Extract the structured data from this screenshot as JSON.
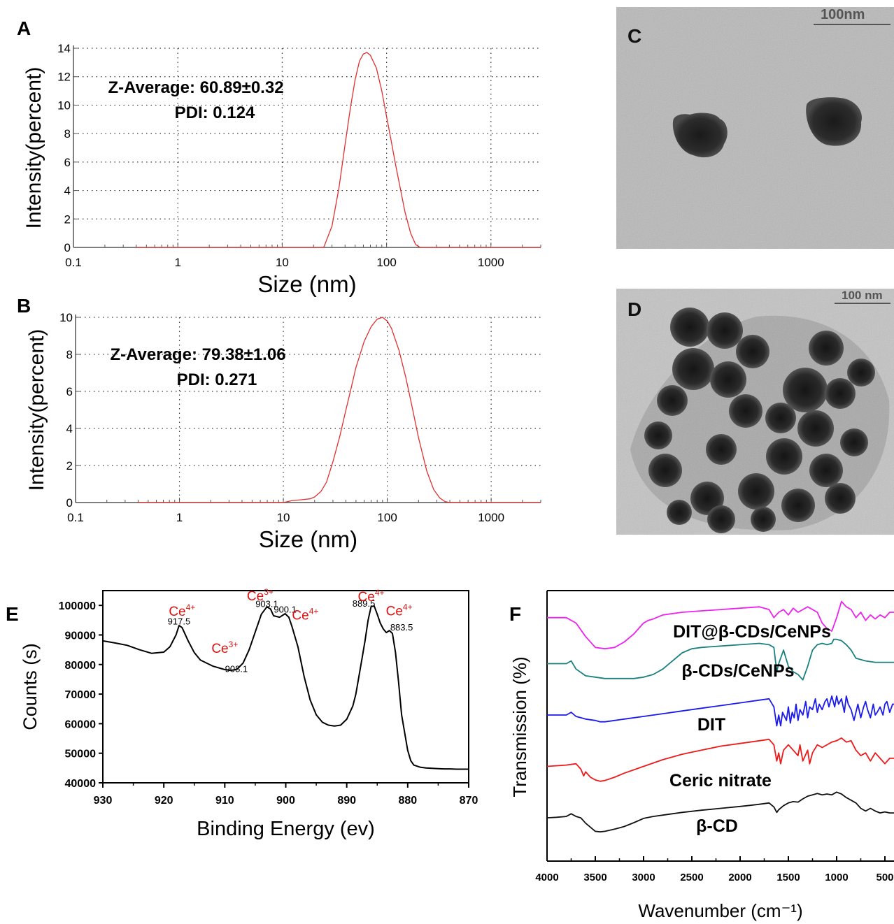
{
  "panels": {
    "A": "A",
    "B": "B",
    "C": "C",
    "D": "D",
    "E": "E",
    "F": "F"
  },
  "tem": {
    "c_scale": "100nm",
    "d_scale": "100 nm"
  },
  "chart_data": [
    {
      "id": "A",
      "type": "line",
      "xscale": "log",
      "xlim": [
        0.1,
        3000
      ],
      "ylim": [
        0,
        14
      ],
      "xticks": [
        "0.1",
        "1",
        "10",
        "100",
        "1000"
      ],
      "yticks": [
        "0",
        "2",
        "4",
        "6",
        "8",
        "10",
        "12",
        "14"
      ],
      "xlabel": "Size (nm)",
      "ylabel": "Intensity(percent)",
      "grid": true,
      "annotations": [
        "Z-Average: 60.89±0.32",
        "PDI: 0.124"
      ],
      "series": [
        {
          "color": "#e03030",
          "x": [
            0.4,
            20,
            25,
            30,
            35,
            40,
            45,
            50,
            55,
            60,
            65,
            70,
            80,
            90,
            100,
            110,
            120,
            130,
            150,
            170,
            190,
            210,
            3000
          ],
          "y": [
            0,
            0,
            0,
            1.5,
            4.2,
            7.2,
            9.8,
            11.8,
            13.1,
            13.6,
            13.7,
            13.5,
            12.6,
            11.0,
            9.2,
            7.6,
            6.1,
            4.8,
            2.5,
            1.0,
            0.2,
            0,
            0
          ]
        }
      ]
    },
    {
      "id": "B",
      "type": "line",
      "xscale": "log",
      "xlim": [
        0.1,
        3000
      ],
      "ylim": [
        0,
        10
      ],
      "xticks": [
        "0.1",
        "1",
        "10",
        "100",
        "1000"
      ],
      "yticks": [
        "0",
        "2",
        "4",
        "6",
        "8",
        "10"
      ],
      "xlabel": "Size (nm)",
      "ylabel": "Intensity(percent)",
      "grid": true,
      "annotations": [
        "Z-Average: 79.38±1.06",
        "PDI: 0.271"
      ],
      "series": [
        {
          "color": "#e03030",
          "x": [
            0.4,
            10,
            12,
            15,
            18,
            20,
            23,
            26,
            30,
            35,
            40,
            45,
            50,
            60,
            70,
            80,
            90,
            100,
            110,
            130,
            150,
            170,
            200,
            240,
            280,
            320,
            360,
            400,
            3000
          ],
          "y": [
            0,
            0,
            0.1,
            0.15,
            0.2,
            0.3,
            0.6,
            1.1,
            2.2,
            3.6,
            5.0,
            6.2,
            7.3,
            8.7,
            9.5,
            9.9,
            10.0,
            9.8,
            9.4,
            8.2,
            6.8,
            5.4,
            3.5,
            1.7,
            0.7,
            0.25,
            0.05,
            0,
            0
          ]
        }
      ]
    },
    {
      "id": "E",
      "type": "line",
      "xlim": [
        930,
        870
      ],
      "ylim": [
        40000,
        105000
      ],
      "xticks": [
        "930",
        "920",
        "910",
        "900",
        "890",
        "880",
        "870"
      ],
      "yticks": [
        "40000",
        "50000",
        "60000",
        "70000",
        "80000",
        "90000",
        "100000"
      ],
      "xlabel": "Binding Energy (ev)",
      "ylabel": "Counts (s)",
      "grid": false,
      "peak_labels": [
        {
          "text": "917.5",
          "x": 917.5,
          "y": 93500
        },
        {
          "text": "908.1",
          "x": 908.1,
          "y": 77500
        },
        {
          "text": "903.1",
          "x": 903.1,
          "y": 99500
        },
        {
          "text": "900.1",
          "x": 900.1,
          "y": 97500
        },
        {
          "text": "889.5",
          "x": 887.2,
          "y": 99600
        },
        {
          "text": "883.5",
          "x": 881.0,
          "y": 91500
        }
      ],
      "species_labels": [
        {
          "text": "Ce",
          "sup": "4+",
          "x": 917.0,
          "y": 96500
        },
        {
          "text": "Ce",
          "sup": "3+",
          "x": 910.0,
          "y": 84000
        },
        {
          "text": "Ce",
          "sup": "3+",
          "x": 904.2,
          "y": 101700
        },
        {
          "text": "Ce",
          "sup": "4+",
          "x": 896.8,
          "y": 95200
        },
        {
          "text": "Ce",
          "sup": "4+",
          "x": 886.0,
          "y": 101500
        },
        {
          "text": "Ce",
          "sup": "4+",
          "x": 881.4,
          "y": 96600
        }
      ],
      "series": [
        {
          "color": "#000000",
          "x": [
            930,
            928,
            926,
            924,
            922,
            920,
            919,
            918,
            917.5,
            917,
            916,
            915,
            914,
            912,
            910,
            909,
            908,
            907,
            906,
            905,
            904,
            903.1,
            902.5,
            902,
            901,
            900.1,
            899.5,
            899,
            898,
            897,
            896,
            895,
            894,
            893,
            892,
            891,
            890,
            889,
            888.5,
            888,
            887.5,
            887,
            886.5,
            886,
            885.5,
            885,
            884.5,
            884,
            883.5,
            883,
            882.5,
            882,
            881.5,
            881,
            880,
            879.5,
            879,
            878,
            877,
            876,
            875,
            874,
            873,
            872,
            871,
            870
          ],
          "y": [
            88000,
            87300,
            86500,
            85000,
            83800,
            84200,
            86000,
            90000,
            93200,
            92500,
            88000,
            84000,
            81500,
            79500,
            78300,
            78000,
            78400,
            80500,
            85000,
            91000,
            97000,
            99500,
            98800,
            96500,
            96000,
            97200,
            96000,
            93000,
            86000,
            76000,
            68000,
            63000,
            60500,
            59500,
            59200,
            59500,
            61500,
            66000,
            70000,
            76000,
            82000,
            88000,
            95000,
            99600,
            99800,
            97000,
            94000,
            92000,
            90800,
            91500,
            90500,
            84000,
            74000,
            63000,
            51000,
            47500,
            46000,
            45300,
            45000,
            44900,
            44800,
            44700,
            44700,
            44600,
            44600,
            44600
          ]
        }
      ]
    },
    {
      "id": "F",
      "type": "line",
      "xlim": [
        4000,
        400
      ],
      "ylim": [
        0,
        100
      ],
      "xticks": [
        "4000",
        "3500",
        "3000",
        "2500",
        "2000",
        "1500",
        "1000",
        "500"
      ],
      "xlabel": "Wavenumber (cm⁻¹)",
      "ylabel": "Transmission (%)",
      "grid": false,
      "series": [
        {
          "name": "DIT@β-CDs/CeNPs",
          "color": "#ee22ee",
          "x": [
            4000,
            3800,
            3700,
            3600,
            3500,
            3400,
            3300,
            3200,
            3100,
            3000,
            2950,
            2900,
            2800,
            2600,
            2400,
            2200,
            2000,
            1800,
            1700,
            1650,
            1600,
            1550,
            1500,
            1450,
            1400,
            1300,
            1200,
            1150,
            1100,
            1050,
            1000,
            950,
            900,
            850,
            800,
            750,
            700,
            650,
            600,
            550,
            500,
            450,
            400
          ],
          "y": [
            90,
            90,
            88,
            83,
            79,
            78.5,
            79,
            81,
            84,
            88,
            89,
            89.5,
            91,
            92,
            92.5,
            93,
            93.5,
            94,
            93,
            90,
            92,
            93,
            91,
            93.5,
            92,
            94,
            92,
            88,
            86,
            85,
            90,
            96,
            94,
            93,
            90,
            92,
            89,
            91,
            89.5,
            91,
            90,
            92,
            92
          ]
        },
        {
          "name": "β-CDs/CeNPs",
          "color": "#1a8080",
          "x": [
            4000,
            3800,
            3750,
            3700,
            3600,
            3500,
            3400,
            3300,
            3200,
            3100,
            3000,
            2900,
            2800,
            2700,
            2600,
            2500,
            2400,
            2200,
            2000,
            1800,
            1700,
            1650,
            1620,
            1600,
            1550,
            1500,
            1450,
            1400,
            1350,
            1300,
            1250,
            1200,
            1150,
            1100,
            1050,
            1030,
            1000,
            950,
            900,
            850,
            800,
            700,
            600,
            500,
            400
          ],
          "y": [
            73,
            73,
            74,
            71,
            68.5,
            68,
            67.5,
            67.5,
            67.5,
            67.5,
            68,
            69,
            71,
            74,
            77,
            78.5,
            79,
            79.5,
            80,
            80.5,
            80,
            79,
            70,
            73,
            78,
            72,
            70,
            69,
            67,
            72,
            78,
            80,
            80.5,
            80,
            80.5,
            82,
            82,
            81.5,
            80,
            78,
            75,
            74,
            73.5,
            73.5,
            73.5
          ]
        },
        {
          "name": "DIT",
          "color": "#1a1aee",
          "x": [
            4000,
            3800,
            3750,
            3700,
            3600,
            3500,
            3450,
            3400,
            3300,
            3200,
            3000,
            2800,
            2600,
            2400,
            2200,
            2000,
            1800,
            1700,
            1650,
            1620,
            1600,
            1580,
            1560,
            1520,
            1500,
            1480,
            1460,
            1440,
            1420,
            1400,
            1380,
            1350,
            1320,
            1300,
            1280,
            1250,
            1220,
            1200,
            1180,
            1150,
            1120,
            1100,
            1080,
            1050,
            1020,
            1000,
            980,
            950,
            920,
            900,
            880,
            850,
            820,
            800,
            780,
            750,
            720,
            700,
            680,
            650,
            620,
            600,
            580,
            550,
            520,
            500,
            480,
            450,
            420,
            400
          ],
          "y": [
            54,
            54,
            55,
            53.5,
            52.5,
            52,
            51.5,
            51.5,
            52,
            52.5,
            53.5,
            54.5,
            55.5,
            56.5,
            57.5,
            58.5,
            59.5,
            60,
            57,
            50,
            54,
            50,
            55,
            52,
            57,
            51,
            55,
            53,
            58,
            52,
            56,
            54,
            59,
            53,
            57,
            56,
            60,
            55,
            58,
            56,
            59,
            60,
            57,
            61,
            57,
            61,
            58,
            60,
            55,
            61,
            58,
            56,
            52,
            55,
            58,
            53,
            57,
            59,
            56,
            53,
            58,
            54,
            55,
            57,
            54,
            58,
            59,
            55,
            58,
            58
          ]
        },
        {
          "name": "Ceric nitrate",
          "color": "#ee1a1a",
          "x": [
            4000,
            3800,
            3700,
            3650,
            3620,
            3600,
            3550,
            3500,
            3450,
            3400,
            3300,
            3200,
            3000,
            2800,
            2600,
            2400,
            2200,
            2000,
            1800,
            1700,
            1650,
            1620,
            1600,
            1580,
            1550,
            1500,
            1450,
            1400,
            1380,
            1350,
            1300,
            1280,
            1250,
            1200,
            1150,
            1100,
            1050,
            1000,
            950,
            900,
            850,
            800,
            750,
            700,
            650,
            600,
            550,
            500,
            450,
            400
          ],
          "y": [
            35,
            35.5,
            36,
            34,
            31.5,
            33,
            31,
            30,
            29.5,
            29.8,
            31,
            32.5,
            35,
            37.5,
            39.5,
            41,
            42.5,
            43.5,
            44.5,
            45,
            43,
            37,
            40,
            36,
            41,
            43,
            41,
            39,
            43,
            37,
            41,
            36,
            40,
            43,
            42,
            43,
            44,
            44.5,
            45.5,
            44,
            44.5,
            41,
            39,
            40,
            37,
            40,
            38,
            36,
            38,
            38
          ]
        },
        {
          "name": "β-CD",
          "color": "#111111",
          "x": [
            4000,
            3900,
            3800,
            3750,
            3700,
            3650,
            3600,
            3550,
            3500,
            3450,
            3400,
            3300,
            3200,
            3100,
            3000,
            2900,
            2800,
            2600,
            2400,
            2200,
            2000,
            1900,
            1800,
            1700,
            1650,
            1620,
            1600,
            1550,
            1500,
            1450,
            1400,
            1350,
            1300,
            1250,
            1200,
            1150,
            1100,
            1050,
            1000,
            950,
            900,
            850,
            800,
            750,
            700,
            650,
            600,
            550,
            500,
            450,
            400
          ],
          "y": [
            16,
            16.2,
            16.5,
            17.5,
            16.5,
            16,
            14,
            12.5,
            11,
            10.8,
            11,
            11.8,
            12.8,
            14.2,
            15.8,
            16.5,
            17,
            18,
            18.8,
            19.5,
            20.2,
            20.6,
            21,
            21.5,
            20,
            18,
            19,
            20.5,
            21.5,
            22,
            21.8,
            23,
            24,
            24.5,
            25,
            24.5,
            24.8,
            24.5,
            25.5,
            24.8,
            23.5,
            22.5,
            21.5,
            19.5,
            18.5,
            19.5,
            18.5,
            17.8,
            18.2,
            17.8,
            17.8
          ]
        }
      ]
    }
  ]
}
